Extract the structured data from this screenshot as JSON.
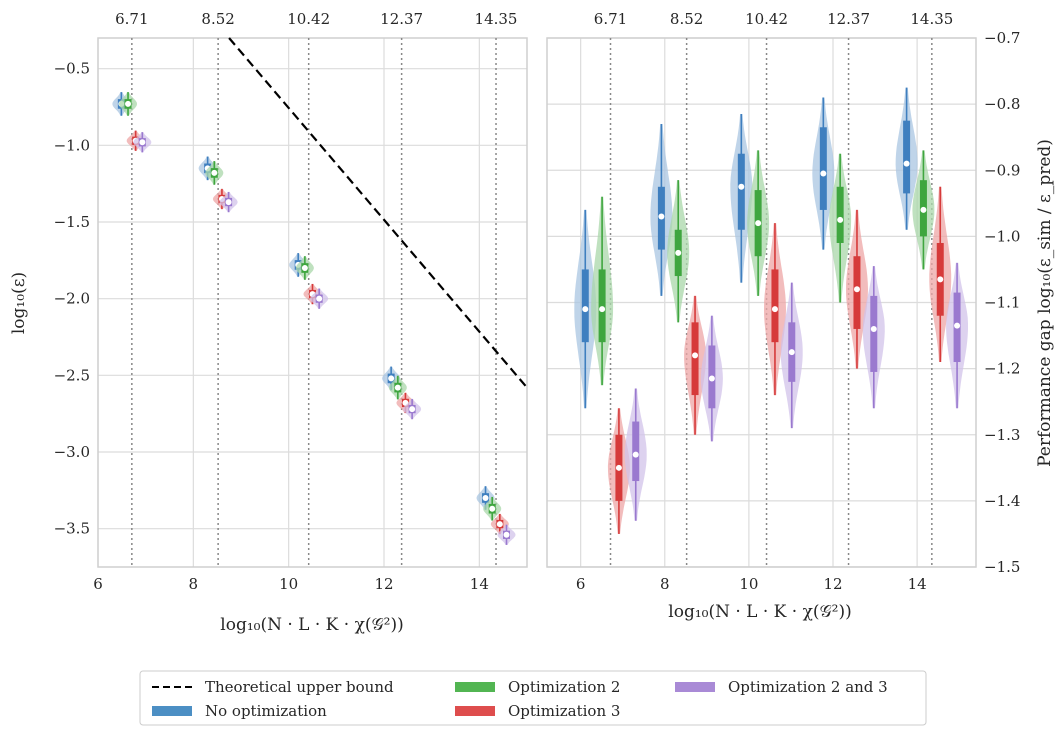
{
  "chart_data": [
    {
      "type": "violin",
      "ylabel": "log₁₀(ε)",
      "xlabel": "log₁₀(N · L · K · χ(𝒢²))",
      "xlim": [
        6,
        15
      ],
      "ylim": [
        -3.75,
        -0.3
      ],
      "xticks": [
        6,
        8,
        10,
        12,
        14
      ],
      "yticks": [
        -0.5,
        -1.0,
        -1.5,
        -2.0,
        -2.5,
        -3.0,
        -3.5
      ],
      "ytick_labels": [
        "−0.5",
        "−1.0",
        "−1.5",
        "−2.0",
        "−2.5",
        "−3.0",
        "−3.5"
      ],
      "top_ticks": [
        6.71,
        8.52,
        10.42,
        12.37,
        14.35
      ],
      "top_tick_labels": [
        "6.71",
        "8.52",
        "10.42",
        "12.37",
        "14.35"
      ],
      "bound_line": {
        "name": "Theoretical upper bound",
        "x": [
          8.75,
          15
        ],
        "y": [
          -0.3,
          -2.58
        ]
      },
      "groups_x": [
        6.71,
        8.52,
        10.42,
        12.37,
        14.35
      ],
      "series": [
        {
          "name": "No optimization",
          "offset": -0.22,
          "medians": [
            -0.73,
            -1.15,
            -1.78,
            -2.52,
            -3.3
          ],
          "spread": 0.07
        },
        {
          "name": "Optimization 2",
          "offset": -0.08,
          "medians": [
            -0.73,
            -1.18,
            -1.8,
            -2.58,
            -3.37
          ],
          "spread": 0.07
        },
        {
          "name": "Optimization 3",
          "offset": 0.08,
          "medians": [
            -0.97,
            -1.35,
            -1.97,
            -2.68,
            -3.47
          ],
          "spread": 0.06
        },
        {
          "name": "Optimization 2 and 3",
          "offset": 0.22,
          "medians": [
            -0.98,
            -1.37,
            -2.0,
            -2.72,
            -3.54
          ],
          "spread": 0.06
        }
      ],
      "grid": true
    },
    {
      "type": "violin",
      "ylabel": "Performance gap log₁₀(ε_sim / ε_pred)",
      "xlabel": "log₁₀(N · L · K · χ(𝒢²))",
      "xlim": [
        5.2,
        15.4
      ],
      "ylim": [
        -1.5,
        -0.7
      ],
      "xticks": [
        6,
        8,
        10,
        12,
        14
      ],
      "yticks": [
        -0.7,
        -0.8,
        -0.9,
        -1.0,
        -1.1,
        -1.2,
        -1.3,
        -1.4,
        -1.5
      ],
      "ytick_labels": [
        "−0.7",
        "−0.8",
        "−0.9",
        "−1.0",
        "−1.1",
        "−1.2",
        "−1.3",
        "−1.4",
        "−1.5"
      ],
      "top_ticks": [
        6.71,
        8.52,
        10.42,
        12.37,
        14.35
      ],
      "top_tick_labels": [
        "6.71",
        "8.52",
        "10.42",
        "12.37",
        "14.35"
      ],
      "groups_x": [
        6.71,
        8.52,
        10.42,
        12.37,
        14.35
      ],
      "series": [
        {
          "name": "No optimization",
          "offset": -0.6,
          "medians": [
            -1.11,
            -0.97,
            -0.925,
            -0.905,
            -0.89
          ],
          "q1": [
            -1.16,
            -1.02,
            -0.99,
            -0.96,
            -0.935
          ],
          "q3": [
            -1.05,
            -0.925,
            -0.875,
            -0.835,
            -0.825
          ],
          "wlo": [
            -1.26,
            -1.09,
            -1.07,
            -1.02,
            -0.99
          ],
          "whi": [
            -0.96,
            -0.83,
            -0.815,
            -0.79,
            -0.775
          ]
        },
        {
          "name": "Optimization 2",
          "offset": -0.2,
          "medians": [
            -1.11,
            -1.025,
            -0.98,
            -0.975,
            -0.96
          ],
          "q1": [
            -1.16,
            -1.06,
            -1.03,
            -1.01,
            -1.0
          ],
          "q3": [
            -1.05,
            -0.99,
            -0.93,
            -0.925,
            -0.915
          ],
          "wlo": [
            -1.225,
            -1.13,
            -1.09,
            -1.1,
            -1.05
          ],
          "whi": [
            -0.94,
            -0.915,
            -0.87,
            -0.875,
            -0.87
          ]
        },
        {
          "name": "Optimization 3",
          "offset": 0.2,
          "medians": [
            -1.35,
            -1.18,
            -1.11,
            -1.08,
            -1.065
          ],
          "q1": [
            -1.4,
            -1.24,
            -1.16,
            -1.14,
            -1.12
          ],
          "q3": [
            -1.3,
            -1.13,
            -1.05,
            -1.03,
            -1.01
          ],
          "wlo": [
            -1.45,
            -1.3,
            -1.24,
            -1.2,
            -1.19
          ],
          "whi": [
            -1.26,
            -1.09,
            -0.98,
            -0.96,
            -0.925
          ]
        },
        {
          "name": "Optimization 2 and 3",
          "offset": 0.6,
          "medians": [
            -1.33,
            -1.215,
            -1.175,
            -1.14,
            -1.135
          ],
          "q1": [
            -1.37,
            -1.26,
            -1.22,
            -1.205,
            -1.19
          ],
          "q3": [
            -1.28,
            -1.165,
            -1.13,
            -1.09,
            -1.085
          ],
          "wlo": [
            -1.43,
            -1.31,
            -1.29,
            -1.26,
            -1.26
          ],
          "whi": [
            -1.23,
            -1.12,
            -1.07,
            -1.045,
            -1.04
          ]
        }
      ],
      "grid": true
    }
  ],
  "legend": {
    "entries": [
      {
        "label": "Theoretical upper bound",
        "kind": "dashed",
        "color": "#000000"
      },
      {
        "label": "No optimization",
        "kind": "patch",
        "color": "#4c8fc4"
      },
      {
        "label": "Optimization 2",
        "kind": "patch",
        "color": "#52b552"
      },
      {
        "label": "Optimization 3",
        "kind": "patch",
        "color": "#de4d4d"
      },
      {
        "label": "Optimization 2 and 3",
        "kind": "patch",
        "color": "#a98ad6"
      }
    ]
  },
  "colors": {
    "No optimization": "#3f7fbf",
    "Optimization 2": "#3fa63f",
    "Optimization 3": "#d63a3a",
    "Optimization 2 and 3": "#9a79cf",
    "grid": "#dcdcdc",
    "axes": "#cfcfcf"
  }
}
